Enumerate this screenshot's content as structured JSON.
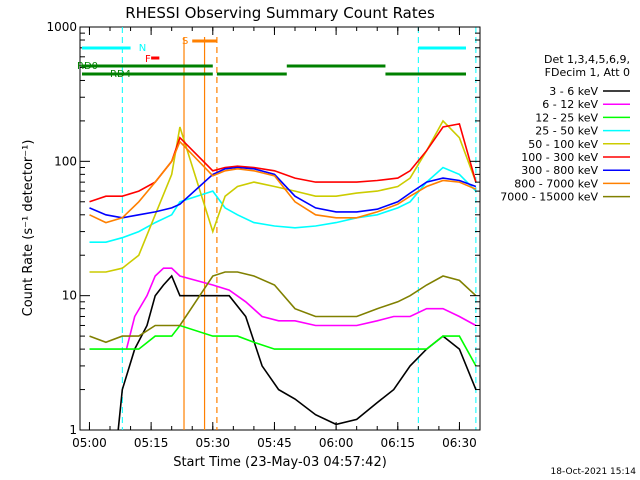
{
  "chart_data": {
    "type": "line",
    "title": "RHESSI Observing Summary Count Rates",
    "xlabel": "Start Time (23-May-03 04:57:42)",
    "ylabel": "Count Rate (s⁻¹ detector⁻¹)",
    "y_scale": "log",
    "ylim": [
      1,
      1000
    ],
    "xlim": [
      "04:57:42",
      "06:35"
    ],
    "x_ticks": [
      "05:00",
      "05:15",
      "05:30",
      "05:45",
      "06:00",
      "06:15",
      "06:30"
    ],
    "y_ticks": [
      "1",
      "10",
      "100",
      "1000"
    ],
    "legend_header": [
      "Det 1,3,4,5,6,9,",
      "FDecim 1, Att 0"
    ],
    "legend_position": "right",
    "timestamp": "18-Oct-2021 15:14",
    "flags": [
      {
        "label": "N",
        "color": "#00ffff"
      },
      {
        "label": "F",
        "color": "#ff0000"
      },
      {
        "label": "S",
        "color": "#ff8000"
      },
      {
        "label": "RD0",
        "color": "#008000"
      },
      {
        "label": "RD4",
        "color": "#008000"
      }
    ],
    "night_boundaries": [
      "05:08",
      "06:20",
      "06:34"
    ],
    "saa_boundaries": [
      "05:23",
      "05:28",
      "05:31"
    ],
    "series": [
      {
        "name": "3 - 6 keV",
        "color": "#000000",
        "points": [
          [
            "05:07",
            1
          ],
          [
            "05:08",
            2
          ],
          [
            "05:11",
            4
          ],
          [
            "05:14",
            6
          ],
          [
            "05:16",
            10
          ],
          [
            "05:18",
            12
          ],
          [
            "05:20",
            14
          ],
          [
            "05:22",
            10
          ],
          [
            "05:30",
            10
          ],
          [
            "05:34",
            10
          ],
          [
            "05:38",
            7
          ],
          [
            "05:42",
            3
          ],
          [
            "05:46",
            2
          ],
          [
            "05:50",
            1.7
          ],
          [
            "05:55",
            1.3
          ],
          [
            "06:00",
            1.1
          ],
          [
            "06:05",
            1.2
          ],
          [
            "06:10",
            1.6
          ],
          [
            "06:14",
            2
          ],
          [
            "06:18",
            3
          ],
          [
            "06:22",
            4
          ],
          [
            "06:26",
            5
          ],
          [
            "06:30",
            4
          ],
          [
            "06:34",
            2
          ]
        ]
      },
      {
        "name": "6 - 12 keV",
        "color": "#ff00ff",
        "points": [
          [
            "05:09",
            4
          ],
          [
            "05:11",
            7
          ],
          [
            "05:14",
            10
          ],
          [
            "05:16",
            14
          ],
          [
            "05:18",
            16
          ],
          [
            "05:20",
            16
          ],
          [
            "05:22",
            14
          ],
          [
            "05:30",
            12
          ],
          [
            "05:34",
            11
          ],
          [
            "05:38",
            9
          ],
          [
            "05:42",
            7
          ],
          [
            "05:46",
            6.5
          ],
          [
            "05:50",
            6.5
          ],
          [
            "05:55",
            6
          ],
          [
            "06:00",
            6
          ],
          [
            "06:05",
            6
          ],
          [
            "06:10",
            6.5
          ],
          [
            "06:14",
            7
          ],
          [
            "06:18",
            7
          ],
          [
            "06:22",
            8
          ],
          [
            "06:26",
            8
          ],
          [
            "06:30",
            7
          ],
          [
            "06:34",
            6
          ]
        ]
      },
      {
        "name": "12 - 25 keV",
        "color": "#00ff00",
        "points": [
          [
            "05:00",
            4
          ],
          [
            "05:04",
            4
          ],
          [
            "05:08",
            4
          ],
          [
            "05:12",
            4
          ],
          [
            "05:16",
            5
          ],
          [
            "05:20",
            5
          ],
          [
            "05:22",
            6
          ],
          [
            "05:30",
            5
          ],
          [
            "05:33",
            5
          ],
          [
            "05:36",
            5
          ],
          [
            "05:40",
            4.5
          ],
          [
            "05:45",
            4
          ],
          [
            "05:50",
            4
          ],
          [
            "05:55",
            4
          ],
          [
            "06:00",
            4
          ],
          [
            "06:05",
            4
          ],
          [
            "06:10",
            4
          ],
          [
            "06:15",
            4
          ],
          [
            "06:18",
            4
          ],
          [
            "06:22",
            4
          ],
          [
            "06:26",
            5
          ],
          [
            "06:30",
            5
          ],
          [
            "06:34",
            3
          ]
        ]
      },
      {
        "name": "25 - 50 keV",
        "color": "#00ffff",
        "points": [
          [
            "05:00",
            25
          ],
          [
            "05:04",
            25
          ],
          [
            "05:08",
            27
          ],
          [
            "05:12",
            30
          ],
          [
            "05:16",
            35
          ],
          [
            "05:20",
            40
          ],
          [
            "05:22",
            50
          ],
          [
            "05:30",
            60
          ],
          [
            "05:33",
            45
          ],
          [
            "05:36",
            40
          ],
          [
            "05:40",
            35
          ],
          [
            "05:45",
            33
          ],
          [
            "05:50",
            32
          ],
          [
            "05:55",
            33
          ],
          [
            "06:00",
            35
          ],
          [
            "06:05",
            38
          ],
          [
            "06:10",
            40
          ],
          [
            "06:15",
            45
          ],
          [
            "06:18",
            50
          ],
          [
            "06:22",
            70
          ],
          [
            "06:26",
            90
          ],
          [
            "06:30",
            80
          ],
          [
            "06:34",
            60
          ]
        ]
      },
      {
        "name": "50 - 100 keV",
        "color": "#cccc00",
        "points": [
          [
            "05:00",
            15
          ],
          [
            "05:04",
            15
          ],
          [
            "05:08",
            16
          ],
          [
            "05:12",
            20
          ],
          [
            "05:16",
            40
          ],
          [
            "05:20",
            80
          ],
          [
            "05:22",
            180
          ],
          [
            "05:30",
            30
          ],
          [
            "05:33",
            55
          ],
          [
            "05:36",
            65
          ],
          [
            "05:40",
            70
          ],
          [
            "05:45",
            65
          ],
          [
            "05:50",
            60
          ],
          [
            "05:55",
            55
          ],
          [
            "06:00",
            55
          ],
          [
            "06:05",
            58
          ],
          [
            "06:10",
            60
          ],
          [
            "06:15",
            65
          ],
          [
            "06:18",
            75
          ],
          [
            "06:22",
            120
          ],
          [
            "06:26",
            200
          ],
          [
            "06:30",
            150
          ],
          [
            "06:34",
            70
          ]
        ]
      },
      {
        "name": "100 - 300 keV",
        "color": "#ff0000",
        "points": [
          [
            "05:00",
            50
          ],
          [
            "05:04",
            55
          ],
          [
            "05:08",
            55
          ],
          [
            "05:12",
            60
          ],
          [
            "05:16",
            70
          ],
          [
            "05:20",
            100
          ],
          [
            "05:22",
            150
          ],
          [
            "05:30",
            85
          ],
          [
            "05:33",
            90
          ],
          [
            "05:36",
            92
          ],
          [
            "05:40",
            90
          ],
          [
            "05:45",
            85
          ],
          [
            "05:50",
            75
          ],
          [
            "05:55",
            70
          ],
          [
            "06:00",
            70
          ],
          [
            "06:05",
            70
          ],
          [
            "06:10",
            72
          ],
          [
            "06:15",
            75
          ],
          [
            "06:18",
            85
          ],
          [
            "06:22",
            120
          ],
          [
            "06:26",
            180
          ],
          [
            "06:30",
            190
          ],
          [
            "06:34",
            70
          ]
        ]
      },
      {
        "name": "300 - 800 keV",
        "color": "#0000ff",
        "points": [
          [
            "05:00",
            45
          ],
          [
            "05:04",
            40
          ],
          [
            "05:08",
            38
          ],
          [
            "05:12",
            40
          ],
          [
            "05:16",
            42
          ],
          [
            "05:20",
            45
          ],
          [
            "05:22",
            48
          ],
          [
            "05:30",
            80
          ],
          [
            "05:33",
            88
          ],
          [
            "05:36",
            90
          ],
          [
            "05:40",
            88
          ],
          [
            "05:45",
            80
          ],
          [
            "05:50",
            55
          ],
          [
            "05:55",
            45
          ],
          [
            "06:00",
            42
          ],
          [
            "06:05",
            42
          ],
          [
            "06:10",
            44
          ],
          [
            "06:15",
            50
          ],
          [
            "06:18",
            58
          ],
          [
            "06:22",
            70
          ],
          [
            "06:26",
            75
          ],
          [
            "06:30",
            72
          ],
          [
            "06:34",
            65
          ]
        ]
      },
      {
        "name": "800 - 7000 keV",
        "color": "#ff8000",
        "points": [
          [
            "05:00",
            40
          ],
          [
            "05:04",
            35
          ],
          [
            "05:08",
            38
          ],
          [
            "05:12",
            50
          ],
          [
            "05:16",
            70
          ],
          [
            "05:20",
            100
          ],
          [
            "05:22",
            140
          ],
          [
            "05:30",
            78
          ],
          [
            "05:33",
            85
          ],
          [
            "05:36",
            88
          ],
          [
            "05:40",
            85
          ],
          [
            "05:45",
            78
          ],
          [
            "05:50",
            50
          ],
          [
            "05:55",
            40
          ],
          [
            "06:00",
            38
          ],
          [
            "06:05",
            38
          ],
          [
            "06:10",
            42
          ],
          [
            "06:15",
            48
          ],
          [
            "06:18",
            55
          ],
          [
            "06:22",
            65
          ],
          [
            "06:26",
            72
          ],
          [
            "06:30",
            70
          ],
          [
            "06:34",
            62
          ]
        ]
      },
      {
        "name": "7000 - 15000 keV",
        "color": "#808000",
        "points": [
          [
            "05:00",
            5
          ],
          [
            "05:04",
            4.5
          ],
          [
            "05:08",
            5
          ],
          [
            "05:12",
            5
          ],
          [
            "05:16",
            6
          ],
          [
            "05:20",
            6
          ],
          [
            "05:22",
            6
          ],
          [
            "05:30",
            14
          ],
          [
            "05:33",
            15
          ],
          [
            "05:36",
            15
          ],
          [
            "05:40",
            14
          ],
          [
            "05:45",
            12
          ],
          [
            "05:50",
            8
          ],
          [
            "05:55",
            7
          ],
          [
            "06:00",
            7
          ],
          [
            "06:05",
            7
          ],
          [
            "06:10",
            8
          ],
          [
            "06:15",
            9
          ],
          [
            "06:18",
            10
          ],
          [
            "06:22",
            12
          ],
          [
            "06:26",
            14
          ],
          [
            "06:30",
            13
          ],
          [
            "06:34",
            10
          ]
        ]
      }
    ]
  }
}
